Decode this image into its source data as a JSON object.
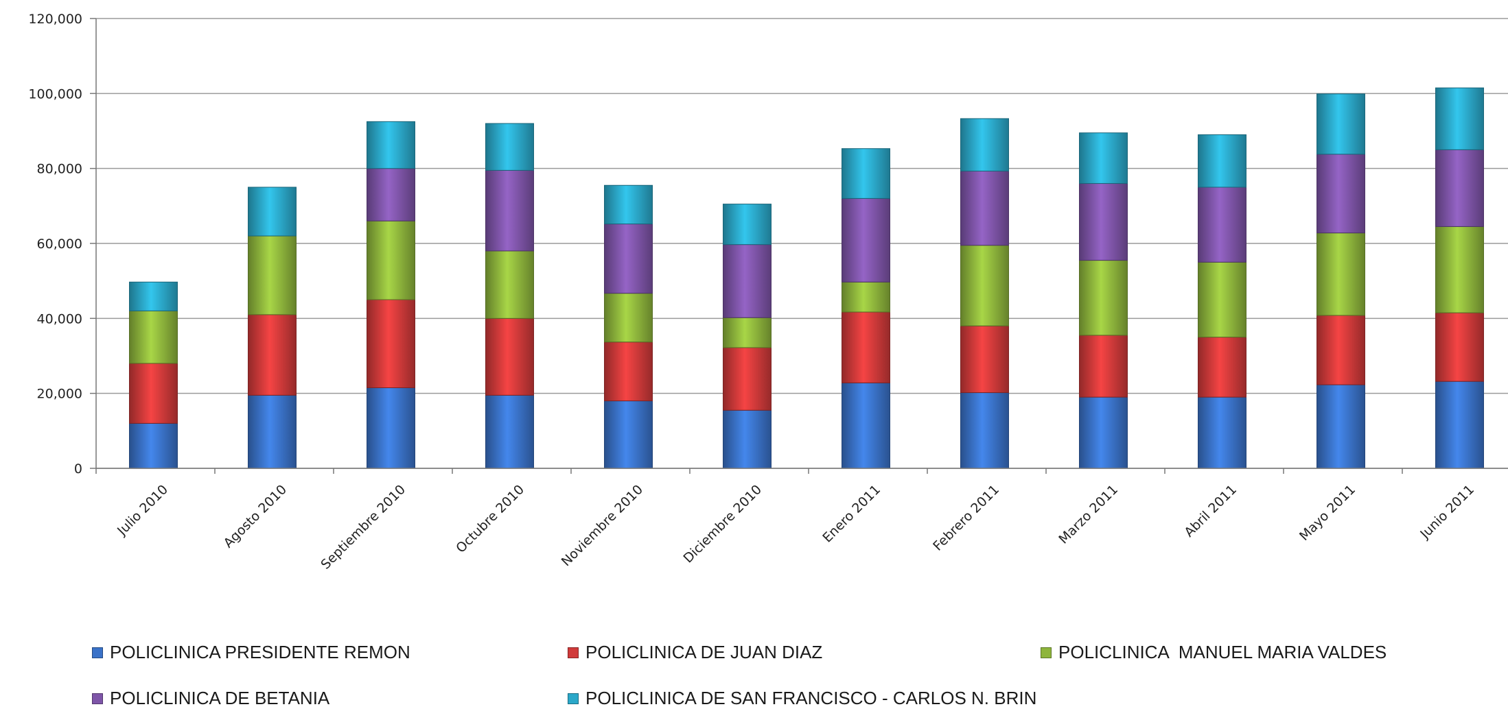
{
  "chart_data": {
    "type": "bar",
    "stacked": true,
    "categories": [
      "Julio 2010",
      "Agosto 2010",
      "Septiembre 2010",
      "Octubre 2010",
      "Noviembre 2010",
      "Diciembre 2010",
      "Enero 2011",
      "Febrero 2011",
      "Marzo 2011",
      "Abril 2011",
      "Mayo 2011",
      "Junio 2011"
    ],
    "series": [
      {
        "name": "POLICLINICA PRESIDENTE REMON",
        "color": "#3A72C8",
        "values": [
          12000,
          19500,
          21500,
          19500,
          18000,
          15500,
          22800,
          20200,
          19000,
          19000,
          22300,
          23200
        ]
      },
      {
        "name": "POLICLINICA DE JUAN DIAZ",
        "color": "#D03A3A",
        "values": [
          16000,
          21500,
          23500,
          20500,
          15700,
          16700,
          18900,
          17800,
          16500,
          16000,
          18500,
          18300
        ]
      },
      {
        "name": "POLICLINICA  MANUEL MARIA VALDES",
        "color": "#8EB53C",
        "values": [
          14000,
          21000,
          21000,
          18000,
          13000,
          8000,
          8000,
          21500,
          20000,
          20000,
          22000,
          23000
        ]
      },
      {
        "name": "POLICLINICA DE BETANIA",
        "color": "#7E55A8",
        "values": [
          0,
          0,
          14000,
          21500,
          18500,
          19500,
          22300,
          19800,
          20500,
          20000,
          21000,
          20500
        ]
      },
      {
        "name": "POLICLINICA DE SAN FRANCISCO - CARLOS N. BRIN",
        "color": "#2BA8C9",
        "values": [
          7700,
          13000,
          12500,
          12500,
          10300,
          10800,
          13300,
          14000,
          13500,
          14000,
          16100,
          16500
        ]
      }
    ],
    "y_ticks": [
      "0",
      "20,000",
      "40,000",
      "60,000",
      "80,000",
      "100,000",
      "120,000"
    ],
    "ylim": [
      0,
      120000
    ],
    "grid": true,
    "legend_position": "bottom",
    "title": "",
    "xlabel": "",
    "ylabel": ""
  }
}
